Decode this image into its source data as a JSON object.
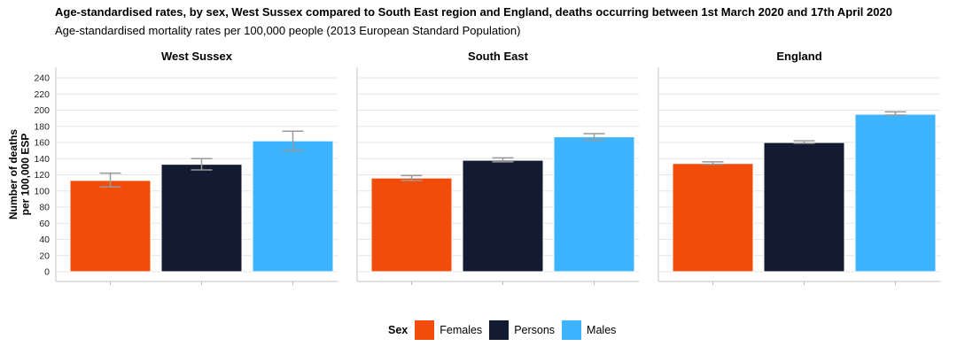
{
  "header": {
    "title": "Age-standardised rates, by sex, West Sussex compared to South East region and England, deaths occurring between 1st March 2020 and 17th April 2020",
    "subtitle": "Age-standardised mortality rates per 100,000 people (2013 European Standard Population)"
  },
  "chart_data": {
    "type": "bar",
    "ylabel_lines": [
      "Number of deaths",
      "per 100,000 ESP"
    ],
    "ylim": [
      0,
      250
    ],
    "yticks": [
      0,
      20,
      40,
      60,
      80,
      100,
      120,
      140,
      160,
      180,
      200,
      220,
      240
    ],
    "grid": true,
    "categories": [
      "Females",
      "Persons",
      "Males"
    ],
    "colors": {
      "Females": "#F24C0B",
      "Persons": "#131B33",
      "Males": "#3CB4FF"
    },
    "error_bar_color": "#999999",
    "panels": [
      {
        "name": "West Sussex",
        "values": [
          113,
          133,
          162
        ],
        "lower": [
          105,
          126,
          150
        ],
        "upper": [
          122,
          140,
          174
        ]
      },
      {
        "name": "South East",
        "values": [
          116,
          138,
          167
        ],
        "lower": [
          113,
          136,
          163
        ],
        "upper": [
          119,
          141,
          171
        ]
      },
      {
        "name": "England",
        "values": [
          134,
          160,
          195
        ],
        "lower": [
          133,
          159,
          194
        ],
        "upper": [
          136,
          162,
          198
        ]
      }
    ],
    "legend": {
      "title": "Sex",
      "position": "bottom",
      "items": [
        "Females",
        "Persons",
        "Males"
      ]
    }
  }
}
